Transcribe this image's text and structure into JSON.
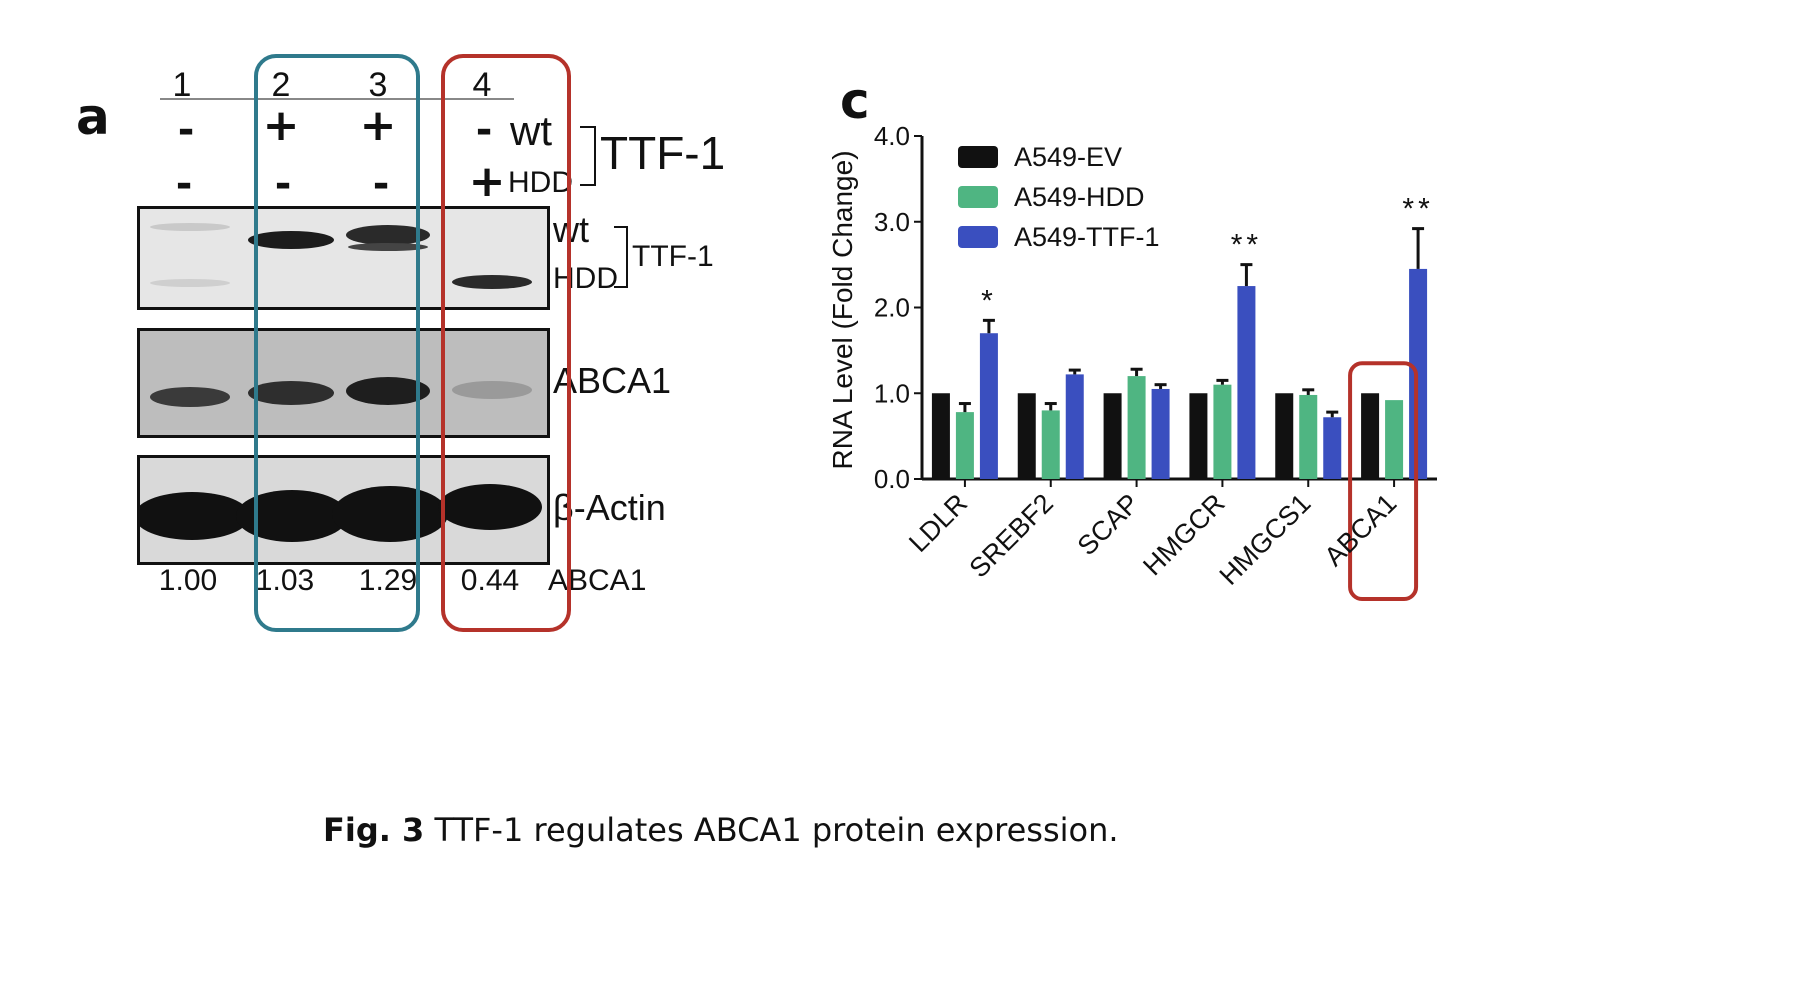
{
  "figure": {
    "caption": {
      "label": "Fig. 3",
      "text": " TTF-1 regulates ABCA1 protein expression."
    }
  },
  "panel_a": {
    "letter": "a",
    "lanes": [
      "1",
      "2",
      "3",
      "4"
    ],
    "row_wt_signs": [
      "-",
      "+",
      "+",
      "-"
    ],
    "row_hdd_signs": [
      "-",
      "-",
      "-",
      "+"
    ],
    "row_wt_label": "wt",
    "row_hdd_label": "HDD",
    "group_label": "TTF-1",
    "blots": {
      "ttf1": {
        "wt_label": "wt",
        "hdd_label": "HDD",
        "group_label": "TTF-1"
      },
      "abca1": {
        "label": "ABCA1"
      },
      "actin": {
        "label": "β-Actin"
      }
    },
    "quantification": {
      "values": [
        "1.00",
        "1.03",
        "1.29",
        "0.44"
      ],
      "label": "ABCA1"
    },
    "highlight_colors": {
      "teal": "#2f7a8c",
      "red": "#b5322a"
    }
  },
  "panel_c": {
    "letter": "c",
    "chart_data": {
      "type": "bar",
      "categories": [
        "LDLR",
        "SREBF2",
        "SCAP",
        "HMGCR",
        "HMGCS1",
        "ABCA1"
      ],
      "series": [
        {
          "name": "A549-EV",
          "color": "#111111",
          "values": [
            1.0,
            1.0,
            1.0,
            1.0,
            1.0,
            1.0
          ],
          "errors": [
            0.0,
            0.0,
            0.0,
            0.0,
            0.0,
            0.0
          ]
        },
        {
          "name": "A549-HDD",
          "color": "#4fb582",
          "values": [
            0.78,
            0.8,
            1.2,
            1.1,
            0.98,
            0.92
          ],
          "errors": [
            0.1,
            0.08,
            0.08,
            0.05,
            0.06,
            0.0
          ]
        },
        {
          "name": "A549-TTF-1",
          "color": "#3a4fbf",
          "values": [
            1.7,
            1.22,
            1.05,
            2.25,
            0.72,
            2.45
          ],
          "errors": [
            0.15,
            0.05,
            0.05,
            0.25,
            0.06,
            0.47
          ]
        }
      ],
      "significance": [
        {
          "category": "LDLR",
          "label": "*"
        },
        {
          "category": "HMGCR",
          "label": "**"
        },
        {
          "category": "ABCA1",
          "label": "**"
        }
      ],
      "ylabel": "RNA Level (Fold Change)",
      "xlabel": "",
      "ylim": [
        0,
        4
      ],
      "yticks": [
        "0.0",
        "1.0",
        "2.0",
        "3.0",
        "4.0"
      ],
      "legend_position": "top-left",
      "highlight_category": "ABCA1",
      "highlight_color": "#b5322a"
    }
  }
}
